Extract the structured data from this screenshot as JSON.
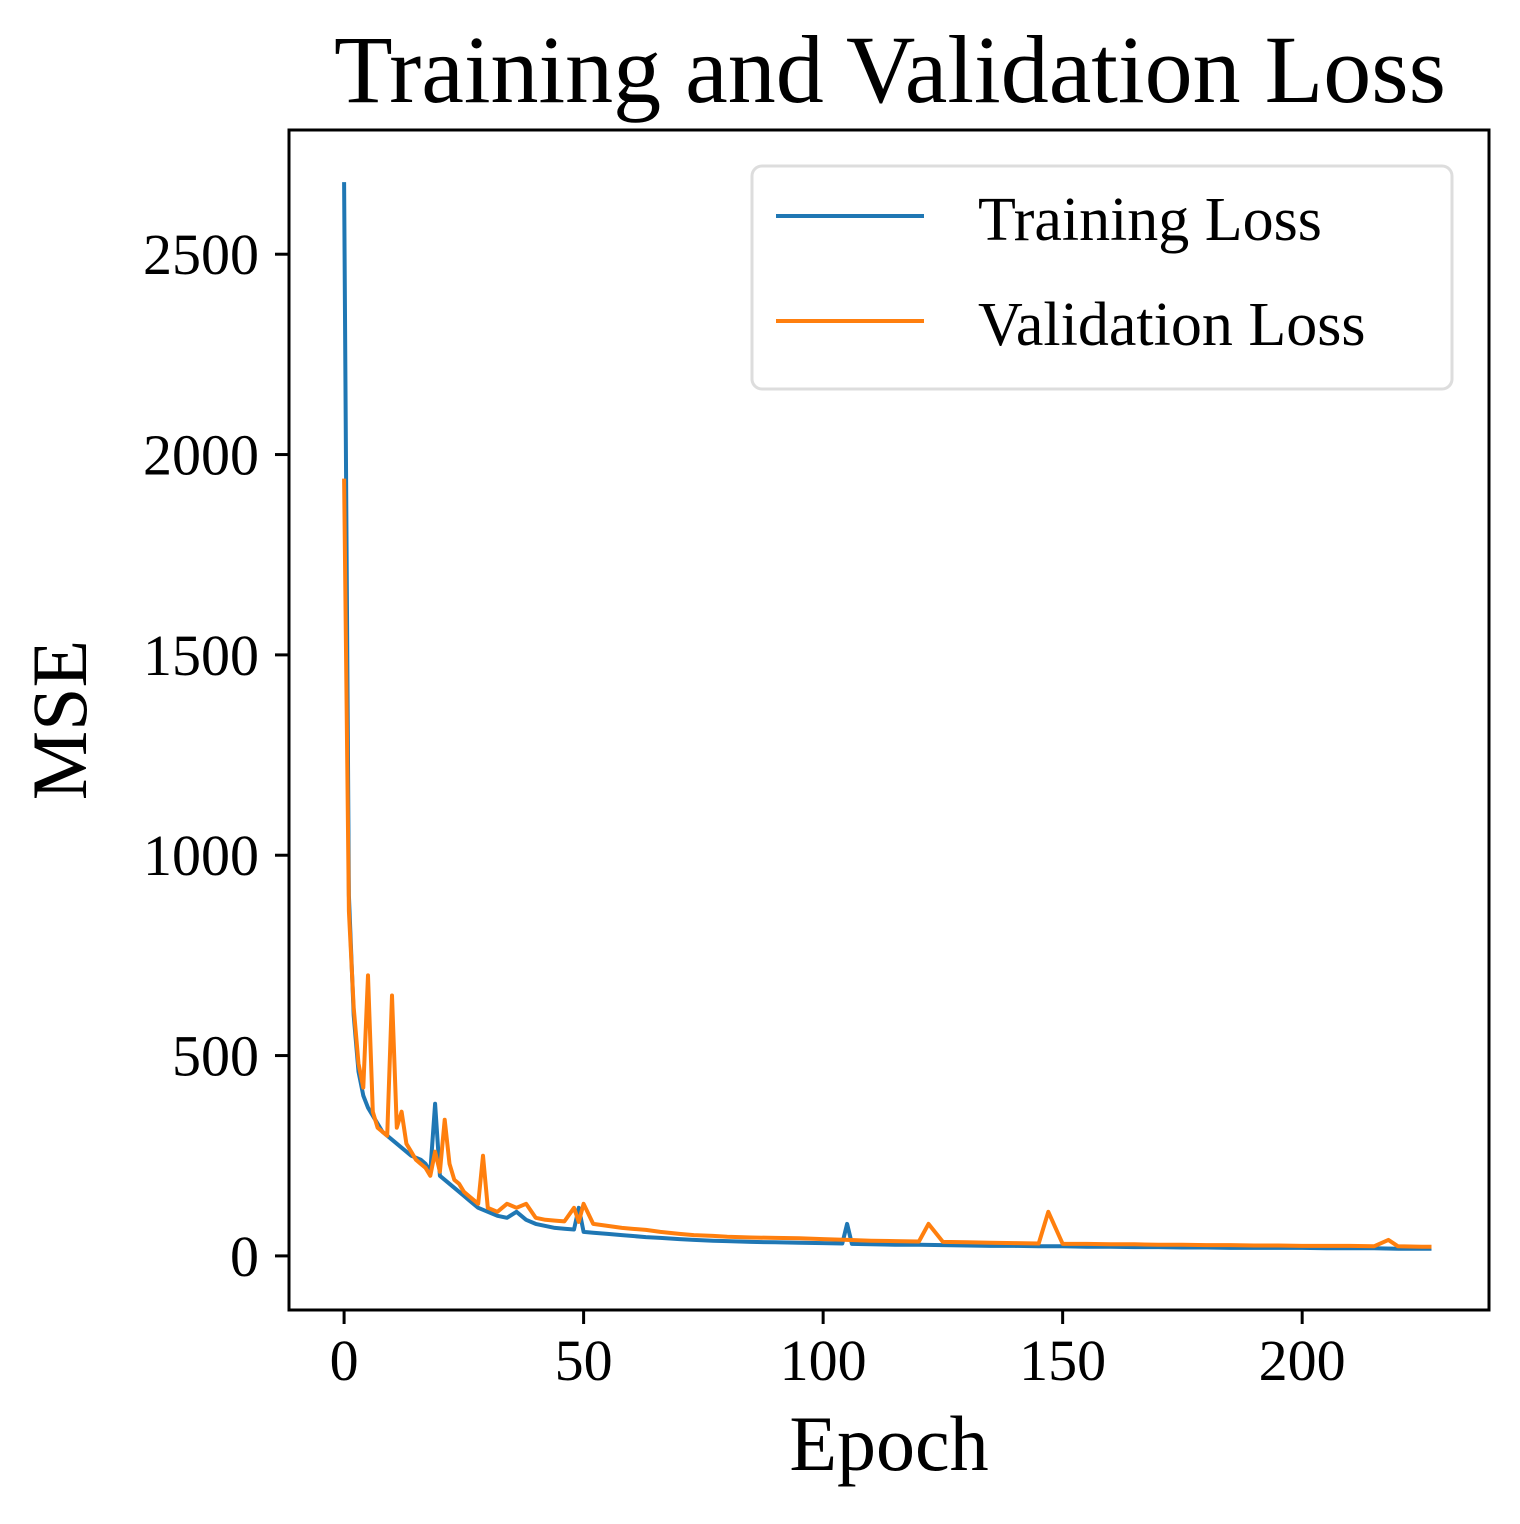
{
  "chart_data": {
    "type": "line",
    "title": "Training and Validation Loss",
    "xlabel": "Epoch",
    "ylabel": "MSE",
    "xlim": [
      -11.5,
      239
    ],
    "ylim": [
      -135,
      2810
    ],
    "xticks": [
      0,
      50,
      100,
      150,
      200
    ],
    "yticks": [
      0,
      500,
      1000,
      1500,
      2000,
      2500
    ],
    "grid": false,
    "legend_position": "top-right",
    "series": [
      {
        "name": "Training Loss",
        "color": "#1f77b4",
        "x": [
          0,
          1,
          2,
          3,
          4,
          5,
          6,
          7,
          8,
          9,
          10,
          11,
          12,
          13,
          14,
          15,
          16,
          17,
          18,
          19,
          20,
          21,
          22,
          23,
          24,
          25,
          26,
          27,
          28,
          29,
          30,
          32,
          34,
          36,
          38,
          40,
          42,
          44,
          46,
          48,
          49,
          50,
          52,
          55,
          58,
          60,
          63,
          66,
          70,
          73,
          77,
          80,
          85,
          90,
          95,
          100,
          104,
          105,
          106,
          110,
          115,
          120,
          125,
          130,
          135,
          140,
          145,
          150,
          155,
          160,
          165,
          170,
          175,
          180,
          185,
          190,
          195,
          200,
          205,
          210,
          215,
          220,
          225,
          227
        ],
        "y": [
          2680,
          900,
          600,
          460,
          400,
          370,
          350,
          330,
          310,
          300,
          290,
          280,
          270,
          260,
          250,
          245,
          240,
          230,
          210,
          380,
          200,
          190,
          180,
          170,
          160,
          150,
          140,
          130,
          120,
          115,
          110,
          100,
          95,
          110,
          90,
          80,
          75,
          70,
          68,
          66,
          120,
          60,
          58,
          55,
          52,
          50,
          47,
          45,
          42,
          40,
          38,
          37,
          35,
          34,
          33,
          32,
          31,
          80,
          30,
          29,
          28,
          28,
          27,
          26,
          25,
          25,
          24,
          24,
          23,
          23,
          22,
          22,
          21,
          21,
          20,
          20,
          20,
          20,
          19,
          19,
          19,
          18,
          18,
          18
        ]
      },
      {
        "name": "Validation Loss",
        "color": "#ff7f0e",
        "x": [
          0,
          1,
          2,
          3,
          4,
          5,
          6,
          7,
          8,
          9,
          10,
          11,
          12,
          13,
          14,
          15,
          16,
          17,
          18,
          19,
          20,
          21,
          22,
          23,
          24,
          25,
          26,
          27,
          28,
          29,
          30,
          31,
          32,
          34,
          36,
          38,
          40,
          42,
          44,
          46,
          48,
          49,
          50,
          52,
          55,
          58,
          60,
          63,
          66,
          70,
          73,
          77,
          80,
          85,
          90,
          95,
          100,
          105,
          110,
          115,
          120,
          122,
          125,
          130,
          135,
          140,
          145,
          147,
          150,
          155,
          160,
          165,
          170,
          175,
          180,
          185,
          190,
          195,
          200,
          205,
          210,
          215,
          218,
          220,
          225,
          227
        ],
        "y": [
          1940,
          860,
          620,
          480,
          420,
          700,
          360,
          320,
          310,
          300,
          650,
          320,
          360,
          280,
          260,
          240,
          230,
          220,
          200,
          260,
          210,
          340,
          230,
          190,
          180,
          160,
          150,
          140,
          130,
          250,
          120,
          115,
          110,
          130,
          120,
          130,
          95,
          90,
          88,
          86,
          120,
          85,
          130,
          80,
          75,
          70,
          68,
          65,
          60,
          55,
          52,
          50,
          48,
          46,
          45,
          44,
          42,
          40,
          38,
          37,
          36,
          80,
          35,
          34,
          33,
          32,
          31,
          110,
          30,
          30,
          29,
          29,
          28,
          28,
          27,
          27,
          26,
          26,
          25,
          25,
          25,
          24,
          40,
          24,
          23,
          23
        ]
      }
    ]
  }
}
